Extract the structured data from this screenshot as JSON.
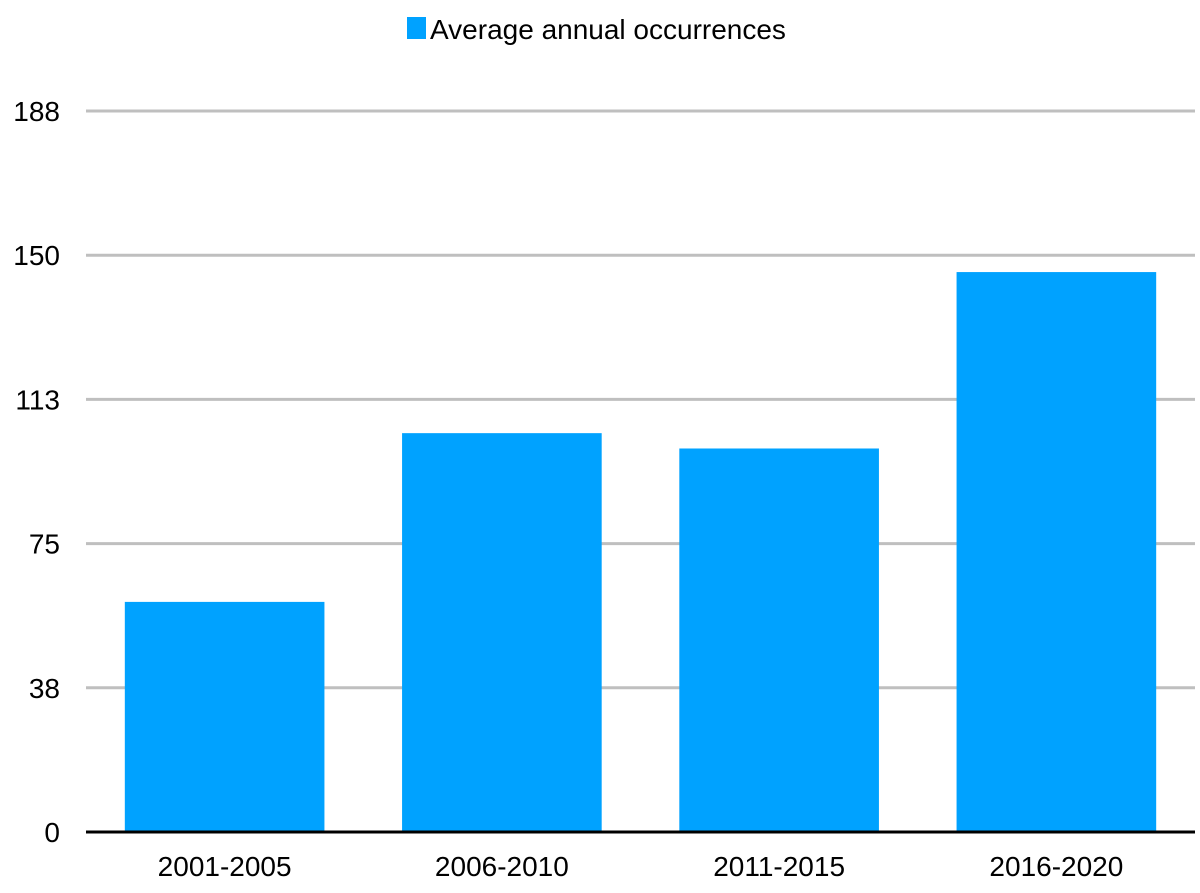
{
  "chart_data": {
    "type": "bar",
    "categories": [
      "2001-2005",
      "2006-2010",
      "2011-2015",
      "2016-2020"
    ],
    "series": [
      {
        "name": "Average annual occurrences",
        "values": [
          60,
          104,
          100,
          146
        ]
      }
    ],
    "y_ticks": [
      "0",
      "38",
      "75",
      "113",
      "150",
      "188"
    ],
    "ylim": [
      0,
      188
    ],
    "grid": true,
    "legend_position": "top-center",
    "colors": {
      "bar": "#00A2FF",
      "grid": "#BFBFBF",
      "axis": "#000000"
    }
  }
}
